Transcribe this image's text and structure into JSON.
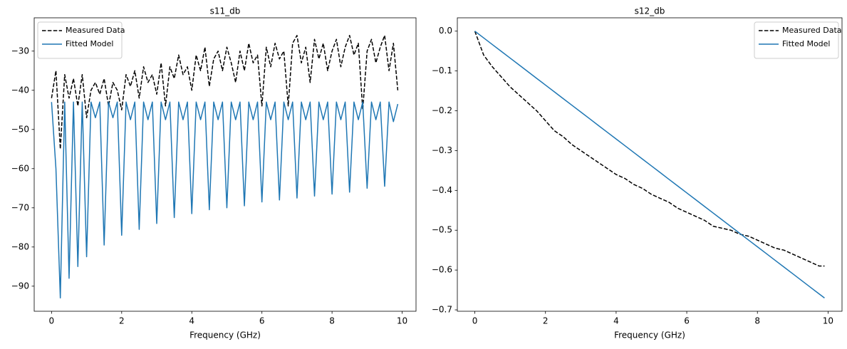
{
  "chart_data": [
    {
      "type": "line",
      "title": "s11_db",
      "x_label": "Frequency (GHz)",
      "legend": "upper left",
      "xlim": [
        -0.495,
        10.395
      ],
      "ylim": [
        -96.4,
        -21.5
      ],
      "xticks": [
        0,
        2,
        4,
        6,
        8,
        10
      ],
      "yticks": [
        {
          "value": -90,
          "label": "−90"
        },
        {
          "value": -80,
          "label": "−80"
        },
        {
          "value": -70,
          "label": "−70"
        },
        {
          "value": -60,
          "label": "−60"
        },
        {
          "value": -50,
          "label": "−50"
        },
        {
          "value": -40,
          "label": "−40"
        },
        {
          "value": -30,
          "label": "−30"
        }
      ],
      "x": [
        0,
        0.125,
        0.25,
        0.375,
        0.5,
        0.625,
        0.75,
        0.875,
        1,
        1.125,
        1.25,
        1.375,
        1.5,
        1.625,
        1.75,
        1.875,
        2,
        2.125,
        2.25,
        2.375,
        2.5,
        2.625,
        2.75,
        2.875,
        3,
        3.125,
        3.25,
        3.375,
        3.5,
        3.625,
        3.75,
        3.875,
        4,
        4.125,
        4.25,
        4.375,
        4.5,
        4.625,
        4.75,
        4.875,
        5,
        5.125,
        5.25,
        5.375,
        5.5,
        5.625,
        5.75,
        5.875,
        6,
        6.125,
        6.25,
        6.375,
        6.5,
        6.625,
        6.75,
        6.875,
        7,
        7.125,
        7.25,
        7.375,
        7.5,
        7.625,
        7.75,
        7.875,
        8,
        8.125,
        8.25,
        8.375,
        8.5,
        8.625,
        8.75,
        8.875,
        9,
        9.125,
        9.25,
        9.375,
        9.5,
        9.625,
        9.75,
        9.875
      ],
      "series": [
        {
          "name": "Measured Data",
          "color": "#000000",
          "linestyle": "dashed",
          "values": [
            -42,
            -35,
            -55,
            -36,
            -42,
            -37,
            -44,
            -36,
            -47,
            -40,
            -38,
            -41,
            -37,
            -44,
            -38,
            -40,
            -45,
            -36,
            -39,
            -35,
            -42,
            -34,
            -38,
            -36,
            -41,
            -33,
            -44,
            -34,
            -37,
            -31,
            -36,
            -34,
            -40,
            -31,
            -35,
            -29,
            -39,
            -32,
            -30,
            -35,
            -29,
            -33,
            -38,
            -30,
            -35,
            -28,
            -33,
            -31,
            -44,
            -29,
            -34,
            -28,
            -32,
            -30,
            -44,
            -28,
            -26,
            -33,
            -29,
            -38,
            -27,
            -32,
            -28,
            -35,
            -30,
            -27,
            -34,
            -29,
            -26,
            -31,
            -28,
            -45,
            -30,
            -27,
            -33,
            -29,
            -26,
            -35,
            -28,
            -40
          ]
        },
        {
          "name": "Fitted Model",
          "color": "#1f77b4",
          "linestyle": "solid",
          "values": [
            -43,
            -60,
            -93,
            -43,
            -88,
            -43,
            -85,
            -43,
            -82.5,
            -43,
            -47,
            -43,
            -79.5,
            -43,
            -47,
            -43,
            -77,
            -43,
            -47.5,
            -43,
            -75.5,
            -43,
            -47.5,
            -43,
            -74,
            -43,
            -47.5,
            -43,
            -72.5,
            -43,
            -47.5,
            -43,
            -71.5,
            -43,
            -47.5,
            -43,
            -70.5,
            -43,
            -47.5,
            -43,
            -70,
            -43,
            -47.5,
            -43,
            -69.5,
            -43,
            -47.5,
            -43,
            -68.5,
            -43,
            -47.5,
            -43,
            -68,
            -43,
            -47.5,
            -43,
            -67.5,
            -43,
            -47.5,
            -43,
            -67,
            -43,
            -47.5,
            -43,
            -66.5,
            -43,
            -47.5,
            -43,
            -66,
            -43,
            -47.5,
            -43,
            -65,
            -43,
            -47.5,
            -43,
            -64.5,
            -43,
            -48,
            -43.5
          ]
        }
      ]
    },
    {
      "type": "line",
      "title": "s12_db",
      "x_label": "Frequency (GHz)",
      "legend": "upper right",
      "xlim": [
        -0.495,
        10.395
      ],
      "ylim": [
        -0.7035,
        0.0335
      ],
      "xticks": [
        0,
        2,
        4,
        6,
        8,
        10
      ],
      "yticks": [
        {
          "value": 0,
          "label": "0.0"
        },
        {
          "value": -0.1,
          "label": "−0.1"
        },
        {
          "value": -0.2,
          "label": "−0.2"
        },
        {
          "value": -0.3,
          "label": "−0.3"
        },
        {
          "value": -0.4,
          "label": "−0.4"
        },
        {
          "value": -0.5,
          "label": "−0.5"
        },
        {
          "value": -0.6,
          "label": "−0.6"
        },
        {
          "value": -0.7,
          "label": "−0.7"
        }
      ],
      "x": [
        0,
        0.25,
        0.5,
        0.75,
        1,
        1.25,
        1.5,
        1.75,
        2,
        2.25,
        2.5,
        2.75,
        3,
        3.25,
        3.5,
        3.75,
        4,
        4.25,
        4.5,
        4.75,
        5,
        5.25,
        5.5,
        5.75,
        6,
        6.25,
        6.5,
        6.75,
        7,
        7.25,
        7.5,
        7.75,
        8,
        8.25,
        8.5,
        8.75,
        9,
        9.25,
        9.5,
        9.75,
        9.9
      ],
      "series": [
        {
          "name": "Measured Data",
          "color": "#000000",
          "linestyle": "dashed",
          "values": [
            0,
            -0.06,
            -0.09,
            -0.115,
            -0.14,
            -0.16,
            -0.18,
            -0.2,
            -0.225,
            -0.25,
            -0.265,
            -0.285,
            -0.3,
            -0.315,
            -0.33,
            -0.345,
            -0.36,
            -0.37,
            -0.385,
            -0.395,
            -0.41,
            -0.42,
            -0.43,
            -0.445,
            -0.455,
            -0.465,
            -0.475,
            -0.49,
            -0.495,
            -0.5,
            -0.51,
            -0.515,
            -0.525,
            -0.535,
            -0.545,
            -0.55,
            -0.56,
            -0.57,
            -0.58,
            -0.59,
            -0.59
          ]
        },
        {
          "name": "Fitted Model",
          "color": "#1f77b4",
          "linestyle": "solid",
          "values": [
            0,
            -0.0169,
            -0.0339,
            -0.0508,
            -0.0677,
            -0.0846,
            -0.1016,
            -0.1185,
            -0.1354,
            -0.1523,
            -0.1693,
            -0.1862,
            -0.2031,
            -0.22,
            -0.237,
            -0.2539,
            -0.2708,
            -0.2877,
            -0.3047,
            -0.3216,
            -0.3385,
            -0.3554,
            -0.3724,
            -0.3893,
            -0.4062,
            -0.4231,
            -0.4401,
            -0.457,
            -0.4739,
            -0.4908,
            -0.5078,
            -0.5247,
            -0.5416,
            -0.5585,
            -0.5755,
            -0.5924,
            -0.6093,
            -0.6262,
            -0.6432,
            -0.6601,
            -0.6702
          ]
        }
      ]
    }
  ]
}
